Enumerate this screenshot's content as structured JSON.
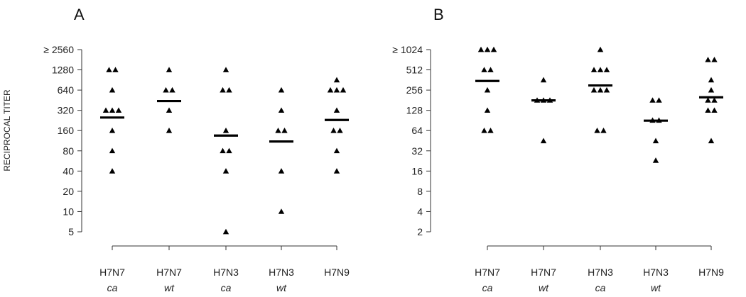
{
  "figure": {
    "ylabel": "RECIPROCAL TITER"
  },
  "chart_data": [
    {
      "type": "scatter",
      "panel_label": "A",
      "ylabel": "RECIPROCAL TITER",
      "y_scale": "log2",
      "yticks": [
        5,
        10,
        20,
        40,
        80,
        160,
        320,
        640,
        1280,
        2560
      ],
      "ytick_labels": [
        "5",
        "10",
        "20",
        "40",
        "80",
        "160",
        "320",
        "640",
        "1280",
        "≥ 2560"
      ],
      "categories": [
        {
          "name": "H7N7",
          "sub": "ca"
        },
        {
          "name": "H7N7",
          "sub": "wt"
        },
        {
          "name": "H7N3",
          "sub": "ca"
        },
        {
          "name": "H7N3",
          "sub": "wt"
        },
        {
          "name": "H7N9",
          "sub": ""
        }
      ],
      "points": [
        [
          1280,
          1280,
          640,
          320,
          320,
          320,
          160,
          80,
          40
        ],
        [
          1280,
          640,
          640,
          320,
          160
        ],
        [
          1280,
          640,
          640,
          160,
          80,
          80,
          40,
          5
        ],
        [
          640,
          320,
          160,
          160,
          40,
          10
        ],
        [
          905,
          640,
          640,
          640,
          320,
          160,
          160,
          80,
          40
        ]
      ],
      "geometric_means": [
        250,
        440,
        135,
        110,
        230
      ]
    },
    {
      "type": "scatter",
      "panel_label": "B",
      "ylabel": "",
      "y_scale": "log2",
      "yticks": [
        2,
        4,
        8,
        16,
        32,
        64,
        128,
        256,
        512,
        1024
      ],
      "ytick_labels": [
        "2",
        "4",
        "8",
        "16",
        "32",
        "64",
        "128",
        "256",
        "512",
        "≥ 1024"
      ],
      "categories": [
        {
          "name": "H7N7",
          "sub": "ca"
        },
        {
          "name": "H7N7",
          "sub": "wt"
        },
        {
          "name": "H7N3",
          "sub": "ca"
        },
        {
          "name": "H7N3",
          "sub": "wt"
        },
        {
          "name": "H7N9",
          "sub": ""
        }
      ],
      "points": [
        [
          1024,
          1024,
          1024,
          512,
          512,
          256,
          128,
          64,
          64
        ],
        [
          362,
          181,
          181,
          181,
          45
        ],
        [
          1024,
          512,
          512,
          512,
          256,
          256,
          256,
          64,
          64
        ],
        [
          181,
          181,
          91,
          91,
          45,
          23
        ],
        [
          724,
          724,
          362,
          256,
          181,
          181,
          128,
          128,
          45
        ]
      ],
      "geometric_means": [
        350,
        180,
        300,
        90,
        200
      ]
    }
  ]
}
